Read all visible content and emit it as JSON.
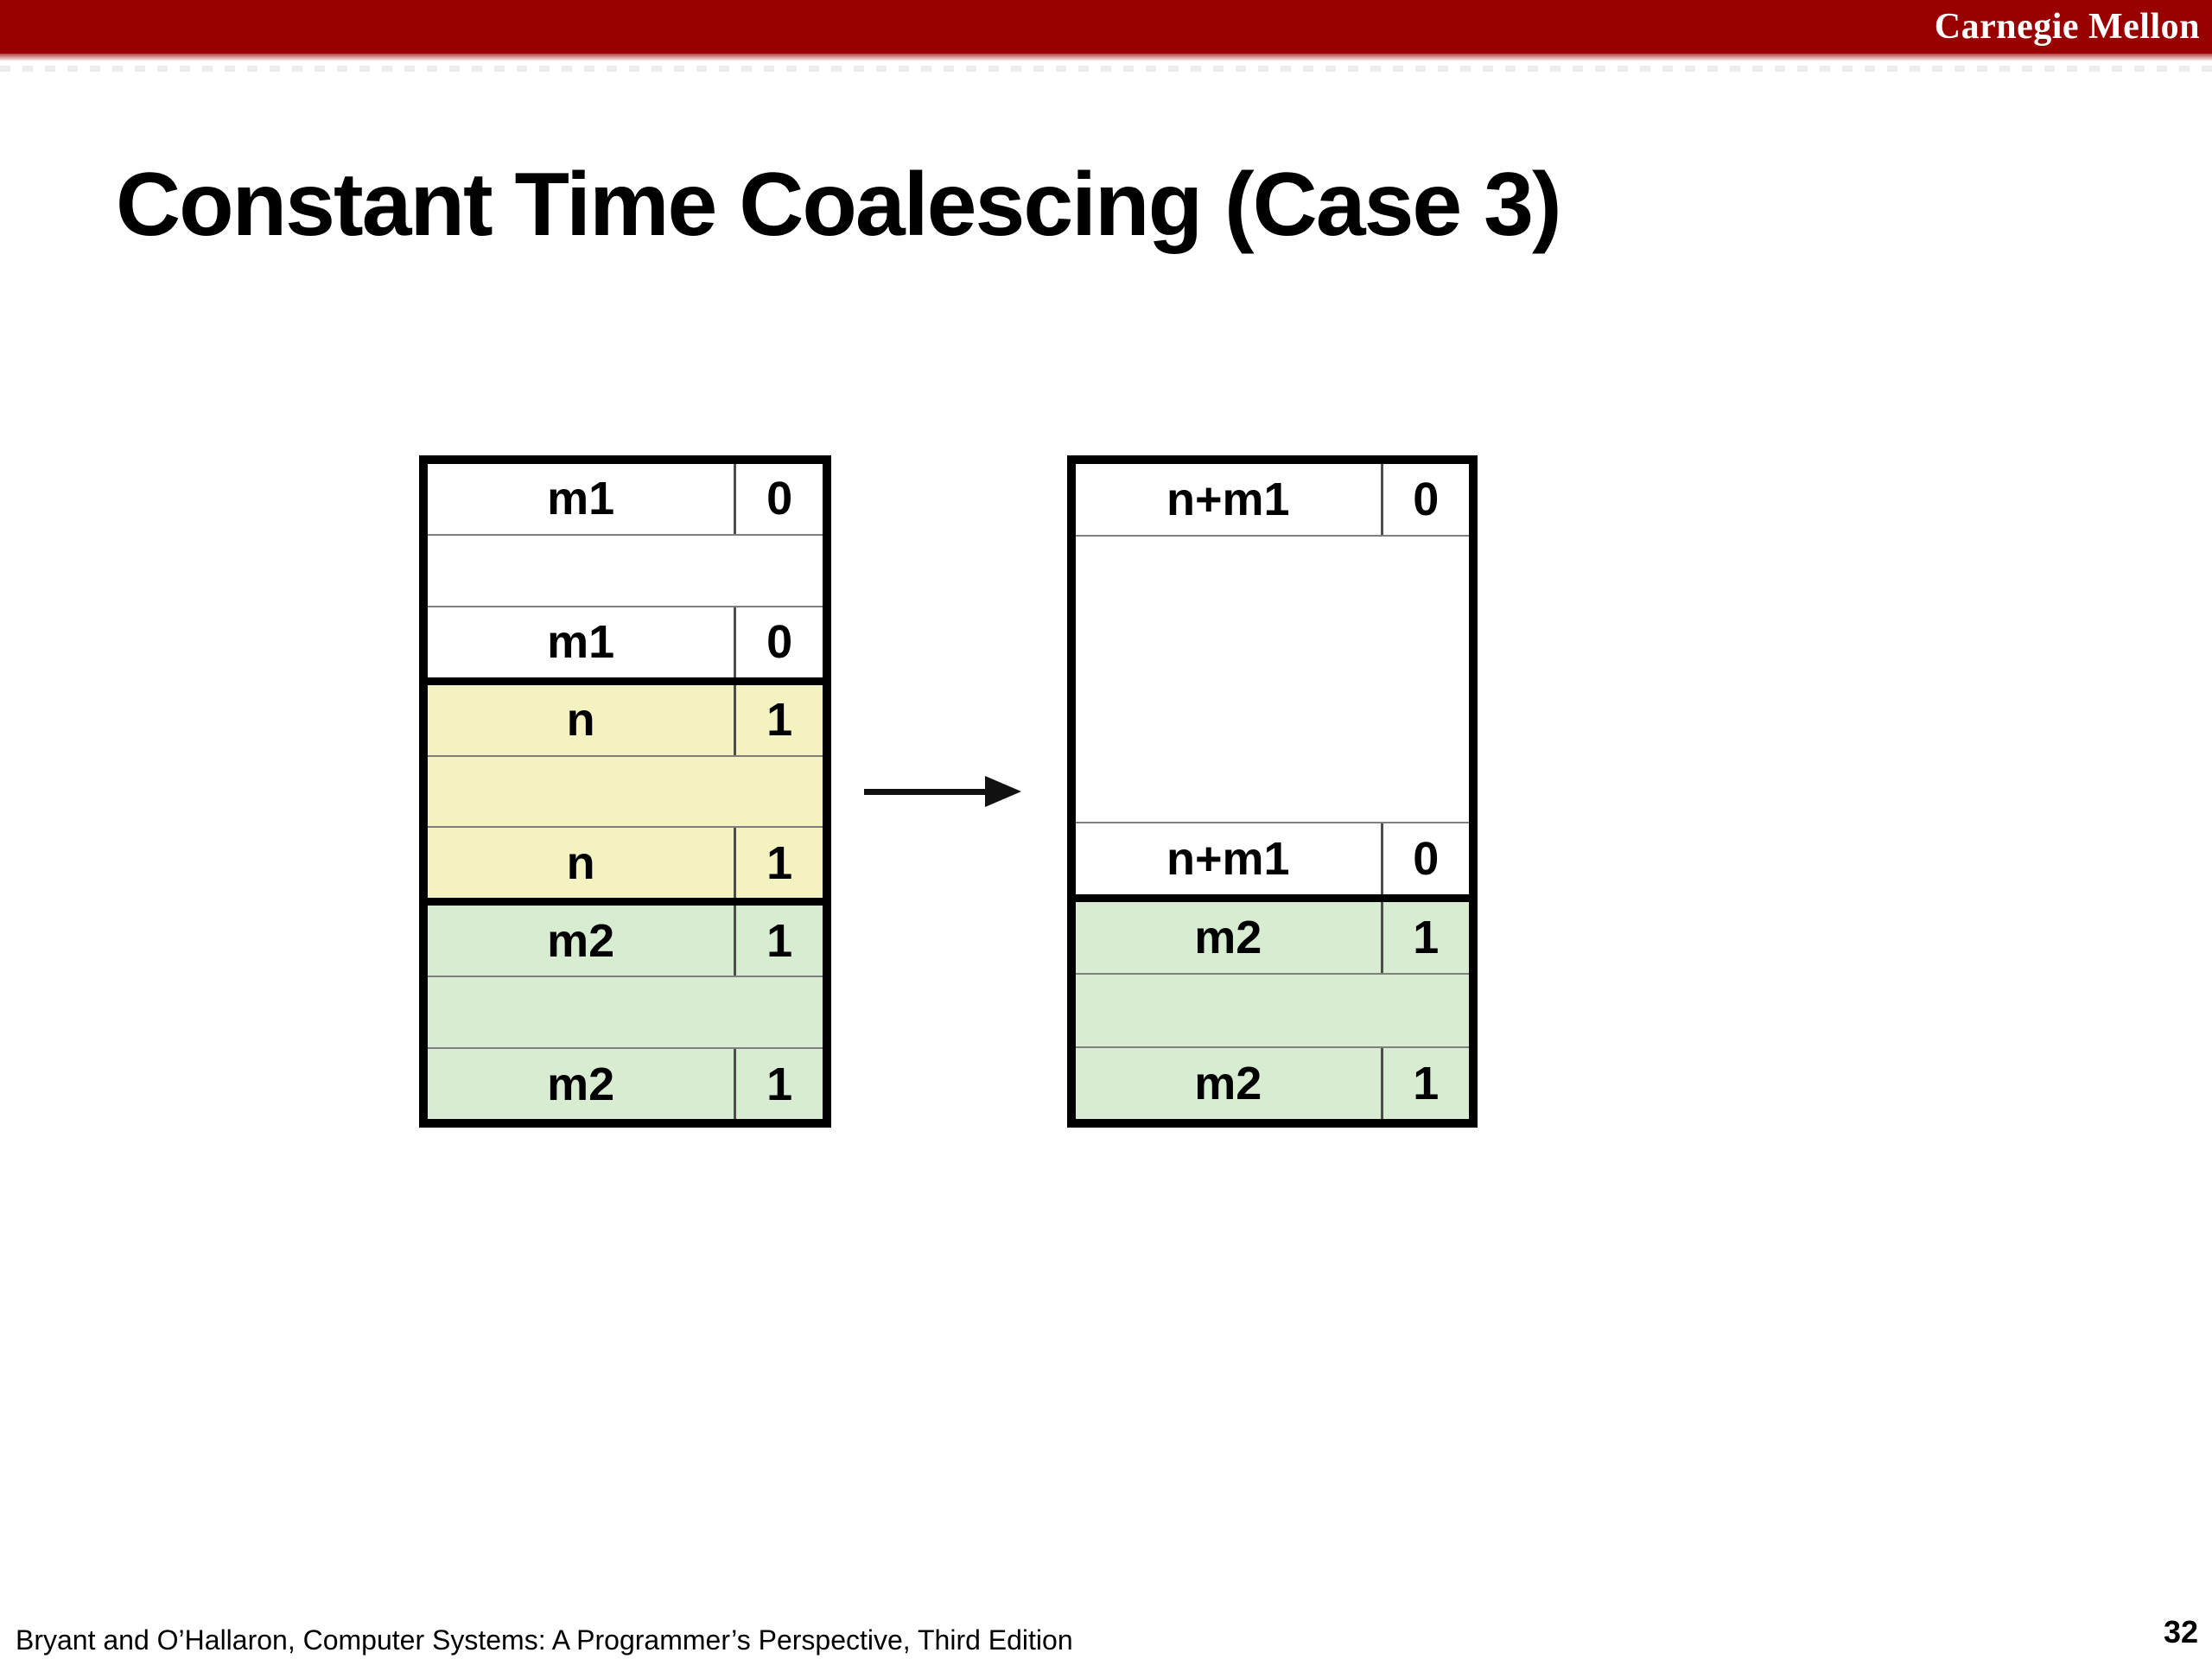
{
  "header": {
    "brand": "Carnegie Mellon",
    "bar_color": "#990000"
  },
  "title": "Constant Time Coalescing (Case 3)",
  "footer": {
    "citation": "Bryant and O’Hallaron, Computer Systems: A Programmer’s Perspective, Third Edition",
    "page_number": "32"
  },
  "colors": {
    "free_white": "#ffffff",
    "freed_yellow": "#f4f2c1",
    "allocated_green": "#d7ecd1",
    "border_black": "#000000",
    "thin_divider_gray": "#7f7f7f",
    "column_divider_gray": "#4d4d4d"
  },
  "diagram": {
    "arrow_icon": "right-arrow",
    "before": {
      "name": "heap-before-coalescing",
      "blocks": [
        {
          "fill_key": "free_white",
          "rows": [
            {
              "kind": "tag",
              "label": "m1",
              "bit": "0"
            },
            {
              "kind": "free",
              "span": 1
            },
            {
              "kind": "tag",
              "label": "m1",
              "bit": "0"
            }
          ]
        },
        {
          "fill_key": "freed_yellow",
          "rows": [
            {
              "kind": "tag",
              "label": "n",
              "bit": "1"
            },
            {
              "kind": "free",
              "span": 1
            },
            {
              "kind": "tag",
              "label": "n",
              "bit": "1"
            }
          ]
        },
        {
          "fill_key": "allocated_green",
          "rows": [
            {
              "kind": "tag",
              "label": "m2",
              "bit": "1"
            },
            {
              "kind": "free",
              "span": 1
            },
            {
              "kind": "tag",
              "label": "m2",
              "bit": "1"
            }
          ]
        }
      ]
    },
    "after": {
      "name": "heap-after-coalescing",
      "blocks": [
        {
          "fill_key": "free_white",
          "rows": [
            {
              "kind": "tag",
              "label": "n+m1",
              "bit": "0"
            },
            {
              "kind": "free",
              "span": 4
            },
            {
              "kind": "tag",
              "label": "n+m1",
              "bit": "0"
            }
          ]
        },
        {
          "fill_key": "allocated_green",
          "rows": [
            {
              "kind": "tag",
              "label": "m2",
              "bit": "1"
            },
            {
              "kind": "free",
              "span": 1
            },
            {
              "kind": "tag",
              "label": "m2",
              "bit": "1"
            }
          ]
        }
      ]
    }
  }
}
